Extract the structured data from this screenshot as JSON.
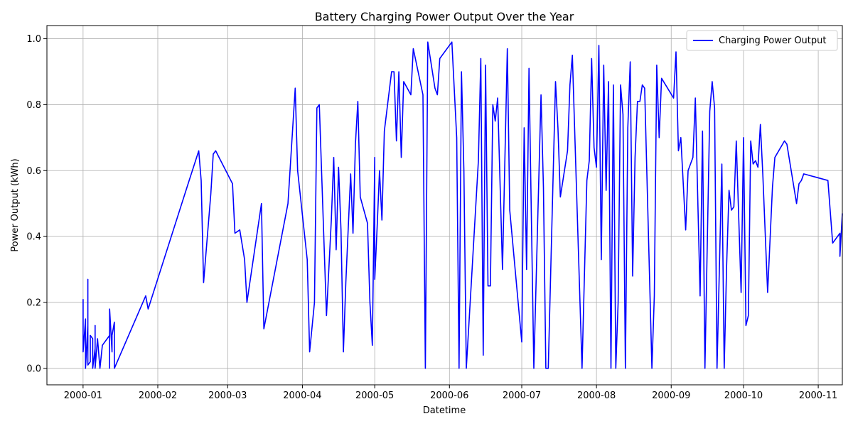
{
  "chart_data": {
    "type": "line",
    "title": "Battery Charging Power Output Over the Year",
    "xlabel": "Datetime",
    "ylabel": "Power Output (kWh)",
    "xlim": [
      "1999-12-17",
      "2000-11-11"
    ],
    "ylim": [
      -0.05,
      1.04
    ],
    "x_ticks": [
      {
        "date": "2000-01-01",
        "label": "2000-01"
      },
      {
        "date": "2000-02-01",
        "label": "2000-02"
      },
      {
        "date": "2000-03-01",
        "label": "2000-03"
      },
      {
        "date": "2000-04-01",
        "label": "2000-04"
      },
      {
        "date": "2000-05-01",
        "label": "2000-05"
      },
      {
        "date": "2000-06-01",
        "label": "2000-06"
      },
      {
        "date": "2000-07-01",
        "label": "2000-07"
      },
      {
        "date": "2000-08-01",
        "label": "2000-08"
      },
      {
        "date": "2000-09-01",
        "label": "2000-09"
      },
      {
        "date": "2000-10-01",
        "label": "2000-10"
      },
      {
        "date": "2000-11-01",
        "label": "2000-11"
      }
    ],
    "y_ticks": [
      {
        "value": 0.0,
        "label": "0.0"
      },
      {
        "value": 0.2,
        "label": "0.2"
      },
      {
        "value": 0.4,
        "label": "0.4"
      },
      {
        "value": 0.6,
        "label": "0.6"
      },
      {
        "value": 0.8,
        "label": "0.8"
      },
      {
        "value": 1.0,
        "label": "1.0"
      }
    ],
    "grid": true,
    "legend_position": "upper-right",
    "series": [
      {
        "name": "Charging Power Output",
        "color": "#0000ff",
        "points": [
          [
            "2000-01-01",
            0.21
          ],
          [
            "2000-01-01",
            0.05
          ],
          [
            "2000-01-02",
            0.15
          ],
          [
            "2000-01-02",
            0.0
          ],
          [
            "2000-01-03",
            0.13
          ],
          [
            "2000-01-03",
            0.27
          ],
          [
            "2000-01-03",
            0.01
          ],
          [
            "2000-01-04",
            0.02
          ],
          [
            "2000-01-04",
            0.1
          ],
          [
            "2000-01-05",
            0.09
          ],
          [
            "2000-01-05",
            0.0
          ],
          [
            "2000-01-06",
            0.06
          ],
          [
            "2000-01-06",
            0.13
          ],
          [
            "2000-01-06",
            0.0
          ],
          [
            "2000-01-07",
            0.09
          ],
          [
            "2000-01-07",
            0.09
          ],
          [
            "2000-01-08",
            0.0
          ],
          [
            "2000-01-08",
            0.0
          ],
          [
            "2000-01-09",
            0.07
          ],
          [
            "2000-01-12",
            0.1
          ],
          [
            "2000-01-12",
            0.0
          ],
          [
            "2000-01-12",
            0.18
          ],
          [
            "2000-01-13",
            0.05
          ],
          [
            "2000-01-13",
            0.1
          ],
          [
            "2000-01-14",
            0.14
          ],
          [
            "2000-01-14",
            0.0
          ],
          [
            "2000-01-27",
            0.22
          ],
          [
            "2000-01-28",
            0.18
          ],
          [
            "2000-02-14",
            0.57
          ],
          [
            "2000-02-18",
            0.66
          ],
          [
            "2000-02-19",
            0.57
          ],
          [
            "2000-02-20",
            0.26
          ],
          [
            "2000-02-23",
            0.53
          ],
          [
            "2000-02-24",
            0.65
          ],
          [
            "2000-02-25",
            0.66
          ],
          [
            "2000-03-03",
            0.56
          ],
          [
            "2000-03-04",
            0.41
          ],
          [
            "2000-03-06",
            0.42
          ],
          [
            "2000-03-08",
            0.33
          ],
          [
            "2000-03-09",
            0.2
          ],
          [
            "2000-03-15",
            0.5
          ],
          [
            "2000-03-16",
            0.12
          ],
          [
            "2000-03-26",
            0.5
          ],
          [
            "2000-03-29",
            0.85
          ],
          [
            "2000-03-30",
            0.6
          ],
          [
            "2000-04-03",
            0.33
          ],
          [
            "2000-04-04",
            0.05
          ],
          [
            "2000-04-06",
            0.2
          ],
          [
            "2000-04-07",
            0.79
          ],
          [
            "2000-04-08",
            0.8
          ],
          [
            "2000-04-11",
            0.16
          ],
          [
            "2000-04-13",
            0.45
          ],
          [
            "2000-04-14",
            0.64
          ],
          [
            "2000-04-15",
            0.36
          ],
          [
            "2000-04-16",
            0.61
          ],
          [
            "2000-04-17",
            0.42
          ],
          [
            "2000-04-18",
            0.05
          ],
          [
            "2000-04-19",
            0.26
          ],
          [
            "2000-04-21",
            0.59
          ],
          [
            "2000-04-22",
            0.41
          ],
          [
            "2000-04-23",
            0.68
          ],
          [
            "2000-04-24",
            0.81
          ],
          [
            "2000-04-25",
            0.52
          ],
          [
            "2000-04-28",
            0.44
          ],
          [
            "2000-04-29",
            0.2
          ],
          [
            "2000-04-30",
            0.07
          ],
          [
            "2000-05-01",
            0.64
          ],
          [
            "2000-05-01",
            0.27
          ],
          [
            "2000-05-02",
            0.43
          ],
          [
            "2000-05-03",
            0.6
          ],
          [
            "2000-05-04",
            0.45
          ],
          [
            "2000-05-05",
            0.72
          ],
          [
            "2000-05-07",
            0.84
          ],
          [
            "2000-05-08",
            0.9
          ],
          [
            "2000-05-09",
            0.9
          ],
          [
            "2000-05-10",
            0.69
          ],
          [
            "2000-05-11",
            0.9
          ],
          [
            "2000-05-12",
            0.64
          ],
          [
            "2000-05-13",
            0.87
          ],
          [
            "2000-05-16",
            0.83
          ],
          [
            "2000-05-17",
            0.97
          ],
          [
            "2000-05-21",
            0.83
          ],
          [
            "2000-05-22",
            0.0
          ],
          [
            "2000-05-23",
            0.99
          ],
          [
            "2000-05-26",
            0.85
          ],
          [
            "2000-05-27",
            0.83
          ],
          [
            "2000-05-28",
            0.94
          ],
          [
            "2000-06-02",
            0.99
          ],
          [
            "2000-06-04",
            0.7
          ],
          [
            "2000-06-05",
            0.0
          ],
          [
            "2000-06-06",
            0.9
          ],
          [
            "2000-06-07",
            0.6
          ],
          [
            "2000-06-08",
            0.0
          ],
          [
            "2000-06-10",
            0.25
          ],
          [
            "2000-06-13",
            0.63
          ],
          [
            "2000-06-14",
            0.94
          ],
          [
            "2000-06-15",
            0.04
          ],
          [
            "2000-06-16",
            0.92
          ],
          [
            "2000-06-17",
            0.25
          ],
          [
            "2000-06-18",
            0.25
          ],
          [
            "2000-06-19",
            0.8
          ],
          [
            "2000-06-20",
            0.75
          ],
          [
            "2000-06-21",
            0.82
          ],
          [
            "2000-06-23",
            0.3
          ],
          [
            "2000-06-25",
            0.97
          ],
          [
            "2000-06-26",
            0.48
          ],
          [
            "2000-07-01",
            0.08
          ],
          [
            "2000-07-02",
            0.73
          ],
          [
            "2000-07-03",
            0.3
          ],
          [
            "2000-07-04",
            0.91
          ],
          [
            "2000-07-05",
            0.45
          ],
          [
            "2000-07-06",
            0.0
          ],
          [
            "2000-07-09",
            0.83
          ],
          [
            "2000-07-10",
            0.55
          ],
          [
            "2000-07-11",
            0.0
          ],
          [
            "2000-07-12",
            0.0
          ],
          [
            "2000-07-15",
            0.87
          ],
          [
            "2000-07-16",
            0.73
          ],
          [
            "2000-07-17",
            0.52
          ],
          [
            "2000-07-20",
            0.66
          ],
          [
            "2000-07-21",
            0.86
          ],
          [
            "2000-07-22",
            0.95
          ],
          [
            "2000-07-26",
            0.0
          ],
          [
            "2000-07-28",
            0.57
          ],
          [
            "2000-07-29",
            0.63
          ],
          [
            "2000-07-30",
            0.94
          ],
          [
            "2000-07-31",
            0.67
          ],
          [
            "2000-08-01",
            0.61
          ],
          [
            "2000-08-02",
            0.98
          ],
          [
            "2000-08-03",
            0.33
          ],
          [
            "2000-08-04",
            0.92
          ],
          [
            "2000-08-05",
            0.54
          ],
          [
            "2000-08-06",
            0.87
          ],
          [
            "2000-08-07",
            0.0
          ],
          [
            "2000-08-08",
            0.86
          ],
          [
            "2000-08-09",
            0.0
          ],
          [
            "2000-08-10",
            0.2
          ],
          [
            "2000-08-11",
            0.86
          ],
          [
            "2000-08-12",
            0.77
          ],
          [
            "2000-08-13",
            0.0
          ],
          [
            "2000-08-14",
            0.73
          ],
          [
            "2000-08-15",
            0.93
          ],
          [
            "2000-08-16",
            0.28
          ],
          [
            "2000-08-17",
            0.64
          ],
          [
            "2000-08-18",
            0.81
          ],
          [
            "2000-08-19",
            0.81
          ],
          [
            "2000-08-20",
            0.86
          ],
          [
            "2000-08-21",
            0.85
          ],
          [
            "2000-08-24",
            0.0
          ],
          [
            "2000-08-25",
            0.22
          ],
          [
            "2000-08-26",
            0.92
          ],
          [
            "2000-08-27",
            0.7
          ],
          [
            "2000-08-28",
            0.88
          ],
          [
            "2000-09-02",
            0.82
          ],
          [
            "2000-09-03",
            0.96
          ],
          [
            "2000-09-04",
            0.66
          ],
          [
            "2000-09-05",
            0.7
          ],
          [
            "2000-09-07",
            0.42
          ],
          [
            "2000-09-08",
            0.6
          ],
          [
            "2000-09-09",
            0.62
          ],
          [
            "2000-09-10",
            0.64
          ],
          [
            "2000-09-11",
            0.82
          ],
          [
            "2000-09-13",
            0.22
          ],
          [
            "2000-09-14",
            0.72
          ],
          [
            "2000-09-15",
            0.0
          ],
          [
            "2000-09-17",
            0.78
          ],
          [
            "2000-09-18",
            0.87
          ],
          [
            "2000-09-19",
            0.79
          ],
          [
            "2000-09-20",
            0.0
          ],
          [
            "2000-09-21",
            0.31
          ],
          [
            "2000-09-22",
            0.62
          ],
          [
            "2000-09-23",
            0.0
          ],
          [
            "2000-09-24",
            0.31
          ],
          [
            "2000-09-25",
            0.54
          ],
          [
            "2000-09-26",
            0.48
          ],
          [
            "2000-09-27",
            0.49
          ],
          [
            "2000-09-28",
            0.69
          ],
          [
            "2000-09-30",
            0.23
          ],
          [
            "2000-10-01",
            0.7
          ],
          [
            "2000-10-02",
            0.13
          ],
          [
            "2000-10-03",
            0.16
          ],
          [
            "2000-10-04",
            0.69
          ],
          [
            "2000-10-05",
            0.62
          ],
          [
            "2000-10-06",
            0.63
          ],
          [
            "2000-10-07",
            0.61
          ],
          [
            "2000-10-08",
            0.74
          ],
          [
            "2000-10-09",
            0.59
          ],
          [
            "2000-10-11",
            0.23
          ],
          [
            "2000-10-13",
            0.55
          ],
          [
            "2000-10-14",
            0.64
          ],
          [
            "2000-10-18",
            0.69
          ],
          [
            "2000-10-19",
            0.68
          ],
          [
            "2000-10-23",
            0.5
          ],
          [
            "2000-10-24",
            0.56
          ],
          [
            "2000-10-25",
            0.57
          ],
          [
            "2000-10-26",
            0.59
          ],
          [
            "2000-11-05",
            0.57
          ],
          [
            "2000-11-07",
            0.38
          ],
          [
            "2000-11-10",
            0.41
          ],
          [
            "2000-11-10",
            0.34
          ],
          [
            "2000-11-11",
            0.47
          ]
        ]
      }
    ]
  }
}
